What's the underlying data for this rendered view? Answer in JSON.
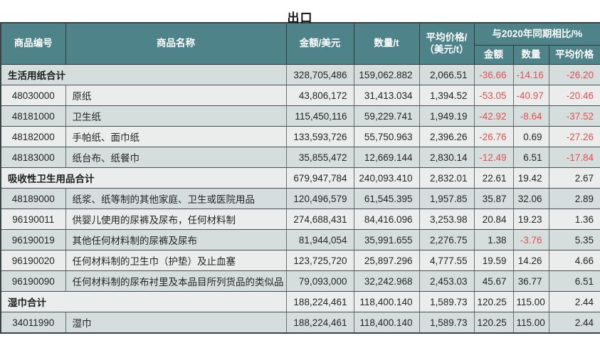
{
  "title": "出口",
  "colors": {
    "header_bg": "#4d8389",
    "row_odd": "#d6dddd",
    "row_even": "#eaedec",
    "negative": "#e25050"
  },
  "table": {
    "headers": {
      "code": "商品编号",
      "name": "商品名称",
      "amount": "金额/美元",
      "quantity": "数量/t",
      "avg_price_line1": "平均价格/",
      "avg_price_line2": "（美元/t）",
      "yoy_group": "与2020年同期相比/%",
      "yoy_amount": "金额",
      "yoy_quantity": "数量",
      "yoy_avg_price": "平均价格"
    },
    "rows": [
      {
        "is_total": true,
        "code": "",
        "name": "生活用纸合计",
        "amount": "328,705,486",
        "quantity": "159,062.882",
        "avg_price": "2,066.51",
        "yoy_amount": "-36.66",
        "yoy_quantity": "-14.16",
        "yoy_avg_price": "-26.20"
      },
      {
        "is_total": false,
        "code": "48030000",
        "name": "原纸",
        "amount": "43,806,172",
        "quantity": "31,413.034",
        "avg_price": "1,394.52",
        "yoy_amount": "-53.05",
        "yoy_quantity": "-40.97",
        "yoy_avg_price": "-20.46"
      },
      {
        "is_total": false,
        "code": "48181000",
        "name": "卫生纸",
        "amount": "115,450,116",
        "quantity": "59,229.741",
        "avg_price": "1,949.19",
        "yoy_amount": "-42.92",
        "yoy_quantity": "-8.64",
        "yoy_avg_price": "-37.52"
      },
      {
        "is_total": false,
        "code": "48182000",
        "name": "手帕纸、面巾纸",
        "amount": "133,593,726",
        "quantity": "55,750.963",
        "avg_price": "2,396.26",
        "yoy_amount": "-26.76",
        "yoy_quantity": "0.69",
        "yoy_avg_price": "-27.26"
      },
      {
        "is_total": false,
        "code": "48183000",
        "name": "纸台布、纸餐巾",
        "amount": "35,855,472",
        "quantity": "12,669.144",
        "avg_price": "2,830.14",
        "yoy_amount": "-12.49",
        "yoy_quantity": "6.51",
        "yoy_avg_price": "-17.84"
      },
      {
        "is_total": true,
        "code": "",
        "name": "吸收性卫生用品合计",
        "amount": "679,947,784",
        "quantity": "240,093.410",
        "avg_price": "2,832.01",
        "yoy_amount": "22.61",
        "yoy_quantity": "19.42",
        "yoy_avg_price": "2.67"
      },
      {
        "is_total": false,
        "code": "48189000",
        "name": "纸浆、纸等制的其他家庭、卫生或医院用品",
        "amount": "120,496,579",
        "quantity": "61,545.395",
        "avg_price": "1,957.85",
        "yoy_amount": "35.87",
        "yoy_quantity": "32.06",
        "yoy_avg_price": "2.89"
      },
      {
        "is_total": false,
        "code": "96190011",
        "name": "供婴儿使用的尿裤及尿布，任何材料制",
        "amount": "274,688,431",
        "quantity": "84,416.096",
        "avg_price": "3,253.98",
        "yoy_amount": "20.84",
        "yoy_quantity": "19.23",
        "yoy_avg_price": "1.36"
      },
      {
        "is_total": false,
        "code": "96190019",
        "name": "其他任何材料制的尿裤及尿布",
        "amount": "81,944,054",
        "quantity": "35,991.655",
        "avg_price": "2,276.75",
        "yoy_amount": "1.38",
        "yoy_quantity": "-3.76",
        "yoy_avg_price": "5.35"
      },
      {
        "is_total": false,
        "code": "96190020",
        "name": "任何材料制的卫生巾（护垫）及止血塞",
        "amount": "123,725,720",
        "quantity": "25,897.296",
        "avg_price": "4,777.55",
        "yoy_amount": "19.59",
        "yoy_quantity": "14.26",
        "yoy_avg_price": "4.66"
      },
      {
        "is_total": false,
        "code": "96190090",
        "name": "任何材料制的尿布衬里及本品目所列货品的类似品",
        "amount": "79,093,000",
        "quantity": "32,242.968",
        "avg_price": "2,453.03",
        "yoy_amount": "45.67",
        "yoy_quantity": "36.77",
        "yoy_avg_price": "6.51"
      },
      {
        "is_total": true,
        "code": "",
        "name": "湿巾合计",
        "amount": "188,224,461",
        "quantity": "118,400.140",
        "avg_price": "1,589.73",
        "yoy_amount": "120.25",
        "yoy_quantity": "115.00",
        "yoy_avg_price": "2.44"
      },
      {
        "is_total": false,
        "code": "34011990",
        "name": "湿巾",
        "amount": "188,224,461",
        "quantity": "118,400.140",
        "avg_price": "1,589.73",
        "yoy_amount": "120.25",
        "yoy_quantity": "115.00",
        "yoy_avg_price": "2.44"
      }
    ]
  }
}
